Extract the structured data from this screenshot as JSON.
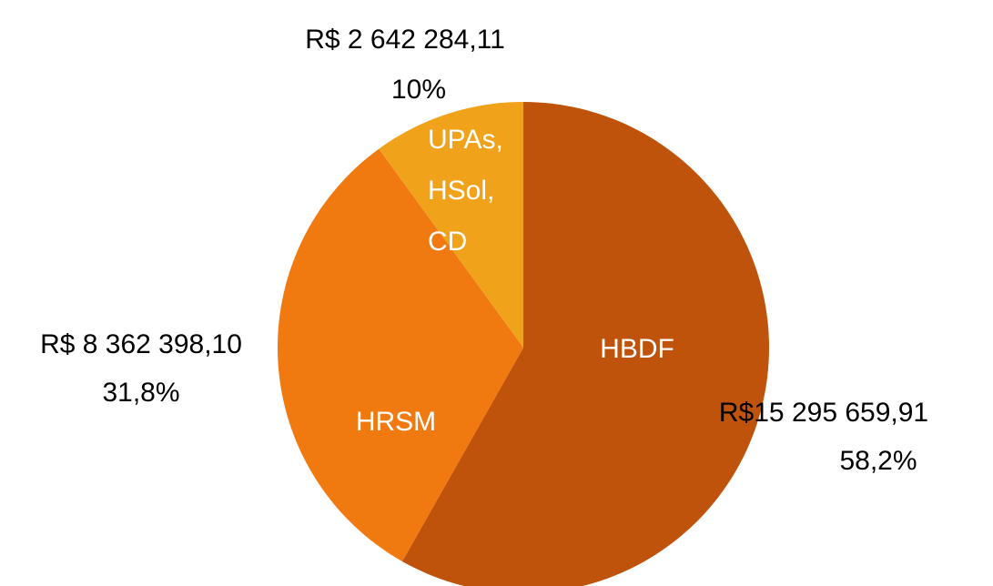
{
  "chart_data": {
    "type": "pie",
    "categories": [
      "HBDF",
      "HRSM",
      "UPAs, HSol, CD"
    ],
    "values": [
      58.2,
      31.8,
      10
    ],
    "value_labels": [
      "58,2%",
      "31,8%",
      "10%"
    ],
    "amount_labels": [
      "R$15 295 659,91",
      "R$ 8 362 398,10",
      "R$ 2 642 284,11"
    ],
    "colors": [
      "#c0530b",
      "#f07a10",
      "#f0a21a"
    ]
  }
}
